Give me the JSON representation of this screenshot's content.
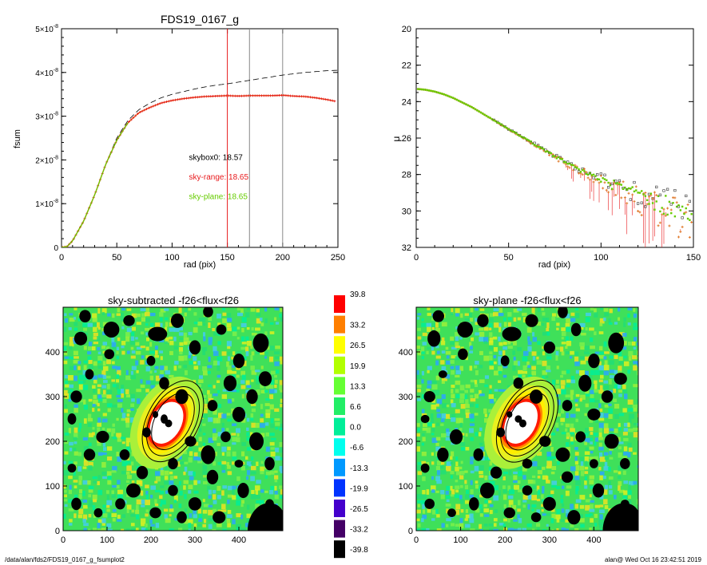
{
  "footer": {
    "path": "/data/alan/fds2/FDS19_0167_g_fsumplot2",
    "user_time": "alan@  Wed Oct 16 23:42:51 2019"
  },
  "colors": {
    "red": "#e8191c",
    "orange": "#e07a2c",
    "green": "#66cc00",
    "gray": "#888888",
    "black": "#000000"
  },
  "colorbar": {
    "labels": [
      "39.8",
      "33.2",
      "26.5",
      "19.9",
      "13.3",
      "6.6",
      "0.0",
      "-6.6",
      "-13.3",
      "-19.9",
      "-26.5",
      "-33.2",
      "-39.8"
    ],
    "colors": [
      "#ff0000",
      "#ff7f00",
      "#ffff00",
      "#b2ff00",
      "#66ff33",
      "#22ee66",
      "#00ee99",
      "#00ffee",
      "#0099ff",
      "#0033ff",
      "#4400cc",
      "#440066",
      "#000000"
    ]
  },
  "chart_data": [
    {
      "type": "line",
      "title": "FDS19_0167_g",
      "xlabel": "rad (pix)",
      "ylabel": "fsum",
      "xlim": [
        0,
        250
      ],
      "ylim": [
        0,
        5e-08
      ],
      "xticks": [
        "0",
        "50",
        "100",
        "150",
        "200",
        "250"
      ],
      "yticks": [
        {
          "mant": "0",
          "exp": ""
        },
        {
          "mant": "1×10",
          "exp": "-8"
        },
        {
          "mant": "2×10",
          "exp": "-8"
        },
        {
          "mant": "3×10",
          "exp": "-8"
        },
        {
          "mant": "4×10",
          "exp": "-8"
        },
        {
          "mant": "5×10",
          "exp": "-8"
        }
      ],
      "vlines": [
        {
          "x": 150,
          "color": "red"
        },
        {
          "x": 170,
          "color": "gray"
        },
        {
          "x": 200,
          "color": "gray"
        }
      ],
      "series": [
        {
          "style": "dashed",
          "color": "black",
          "x": [
            0,
            5,
            10,
            20,
            30,
            40,
            50,
            60,
            70,
            80,
            90,
            100,
            110,
            120,
            130,
            140,
            150,
            160,
            170,
            180,
            190,
            200,
            210,
            220,
            230,
            240,
            250
          ],
          "y": [
            0,
            2e-10,
            1.5e-09,
            6e-09,
            1.2e-08,
            1.9e-08,
            2.5e-08,
            2.9e-08,
            3.15e-08,
            3.3e-08,
            3.42e-08,
            3.5e-08,
            3.56e-08,
            3.62e-08,
            3.67e-08,
            3.71e-08,
            3.74e-08,
            3.78e-08,
            3.82e-08,
            3.86e-08,
            3.9e-08,
            3.94e-08,
            3.97e-08,
            4e-08,
            4.02e-08,
            4.04e-08,
            4.05e-08
          ]
        },
        {
          "style": "markers",
          "color": "red",
          "x": [
            0,
            5,
            10,
            20,
            30,
            40,
            50,
            60,
            70,
            80,
            90,
            100,
            110,
            120,
            130,
            140,
            150,
            160,
            170,
            180,
            190,
            200,
            210,
            220,
            230,
            240,
            250
          ],
          "y": [
            0,
            2e-10,
            1.5e-09,
            6e-09,
            1.2e-08,
            1.9e-08,
            2.45e-08,
            2.85e-08,
            3.08e-08,
            3.2e-08,
            3.3e-08,
            3.36e-08,
            3.4e-08,
            3.43e-08,
            3.45e-08,
            3.46e-08,
            3.47e-08,
            3.46e-08,
            3.47e-08,
            3.47e-08,
            3.47e-08,
            3.48e-08,
            3.46e-08,
            3.45e-08,
            3.42e-08,
            3.38e-08,
            3.33e-08
          ]
        },
        {
          "style": "line",
          "color": "green",
          "x": [
            0,
            5,
            10,
            20,
            30,
            40,
            50,
            60
          ],
          "y": [
            0,
            2e-10,
            1.5e-09,
            6e-09,
            1.2e-08,
            1.9e-08,
            2.45e-08,
            2.85e-08
          ]
        }
      ],
      "annotations": [
        {
          "text": "skybox0: 18.57",
          "color": "black",
          "x": 90,
          "y": 2e-08
        },
        {
          "text": "sky-range: 18.65",
          "color": "red",
          "x": 90,
          "y": 1.55e-08
        },
        {
          "text": "sky-plane: 18.65",
          "color": "green",
          "x": 90,
          "y": 1.1e-08
        }
      ]
    },
    {
      "type": "scatter",
      "title": "",
      "xlabel": "rad (pix)",
      "ylabel": "μ",
      "xlim": [
        0,
        150
      ],
      "ylim": [
        32,
        20
      ],
      "xticks": [
        "0",
        "50",
        "100",
        "150"
      ],
      "yticks": [
        "20",
        "22",
        "24",
        "26",
        "28",
        "30",
        "32"
      ],
      "profile": {
        "x": [
          0,
          5,
          10,
          15,
          20,
          25,
          30,
          35,
          40,
          45,
          50,
          55,
          60,
          65,
          70,
          75,
          80,
          85,
          90,
          95,
          100,
          105,
          110,
          115,
          120,
          125,
          130,
          135,
          140,
          145,
          150
        ],
        "y": [
          23.3,
          23.35,
          23.45,
          23.6,
          23.8,
          24.05,
          24.3,
          24.6,
          24.9,
          25.2,
          25.5,
          25.8,
          26.1,
          26.4,
          26.7,
          27.0,
          27.25,
          27.55,
          27.8,
          28.05,
          28.3,
          28.5,
          28.7,
          28.9,
          29.1,
          29.3,
          29.5,
          29.7,
          29.9,
          30.1,
          30.3
        ],
        "scatter_amp": [
          0,
          0,
          0,
          0,
          0,
          0,
          0,
          0,
          0.05,
          0.1,
          0.12,
          0.15,
          0.2,
          0.25,
          0.3,
          0.4,
          0.5,
          0.6,
          0.8,
          1.0,
          1.3,
          1.6,
          2.0,
          2.4,
          2.7,
          3.0,
          3.3,
          3.6,
          3.8,
          4.0,
          4.2
        ]
      }
    },
    {
      "type": "heatmap",
      "title": "sky-subtracted -f26<flux<f26",
      "xlim": [
        0,
        500
      ],
      "ylim": [
        0,
        500
      ],
      "xticks": [
        "0",
        "100",
        "200",
        "300",
        "400"
      ],
      "yticks": [
        "0",
        "100",
        "200",
        "300",
        "400"
      ],
      "galaxy_center": [
        250,
        245
      ],
      "ellipses": [
        {
          "a": 140,
          "b": 80,
          "angle_deg": 62,
          "color": "black"
        },
        {
          "a": 170,
          "b": 100,
          "angle_deg": 62,
          "color": "black"
        },
        {
          "a": 200,
          "b": 115,
          "angle_deg": 62,
          "color": "black"
        }
      ]
    },
    {
      "type": "heatmap",
      "title": "sky-plane -f26<flux<f26",
      "xlim": [
        0,
        500
      ],
      "ylim": [
        0,
        500
      ],
      "xticks": [
        "0",
        "100",
        "200",
        "300",
        "400"
      ],
      "yticks": [
        "0",
        "100",
        "200",
        "300",
        "400"
      ],
      "galaxy_center": [
        250,
        245
      ],
      "ellipses": [
        {
          "a": 140,
          "b": 80,
          "angle_deg": 62,
          "color": "black"
        },
        {
          "a": 170,
          "b": 100,
          "angle_deg": 62,
          "color": "black"
        },
        {
          "a": 200,
          "b": 115,
          "angle_deg": 62,
          "color": "black"
        }
      ]
    }
  ]
}
